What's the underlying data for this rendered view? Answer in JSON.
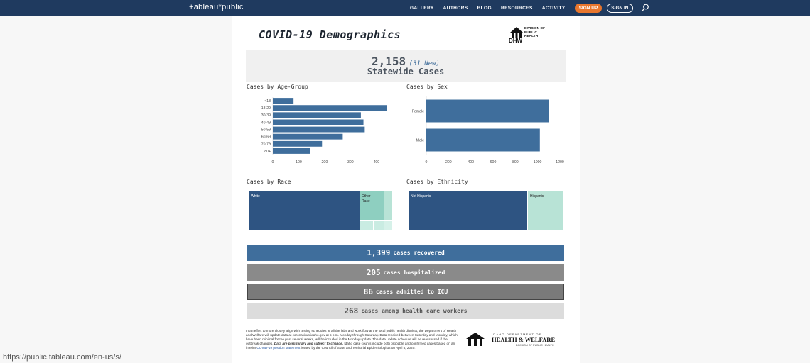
{
  "topbar": {
    "brand": "+ableau*public",
    "nav": [
      "GALLERY",
      "AUTHORS",
      "BLOG",
      "RESOURCES",
      "ACTIVITY"
    ],
    "signup": "SIGN UP",
    "signin": "SIGN IN",
    "bg": "#1f3a5f",
    "accent": "#e8762d"
  },
  "dashboard": {
    "title": "COVID-19 Demographics",
    "logo_text": [
      "DIVISION OF",
      "PUBLIC",
      "HEALTH"
    ],
    "logo_mark": "DHW",
    "banner": {
      "total": "2,158",
      "new": "(31 New)",
      "label": "Statewide Cases"
    },
    "sections": {
      "age": "Cases by Age-Group",
      "sex": "Cases by Sex",
      "race": "Cases by Race",
      "ethnicity": "Cases by Ethnicity"
    },
    "race_labels": {
      "white": "White",
      "other": "Other Race"
    },
    "ethnicity_labels": {
      "not_hispanic": "Not Hispanic",
      "hispanic": "Hispanic"
    },
    "stats": [
      {
        "number": "1,399",
        "text": "cases recovered",
        "color": "#3f6e9c"
      },
      {
        "number": "205",
        "text": "cases hospitalized",
        "color": "#8a8a8a"
      },
      {
        "number": "86",
        "text": "cases admitted to ICU",
        "color": "#7a7a7a"
      },
      {
        "number": "268",
        "text": "cases among health care workers",
        "color": "#dcdcdc",
        "textColor": "#555555"
      }
    ],
    "footer": {
      "p1": "In an effort to more closely align with testing schedules at all the labs and work flow at the local public health districts, the Department of Health and Welfare will update data at coronavirus.idaho.gov at 5 p.m. Monday through Saturday. Data received between Saturday and Monday, which have been minimal for the past several weeks, will be included in the Monday update. The data update schedule will be reassessed if the outbreak changes.",
      "bold": "Data are preliminary and subject to change.",
      "p2": "Idaho case counts include both probable and confirmed cases based on an interim",
      "link": "COVID-19 position statement",
      "p3": "issued by the Council of State and Territorial Epidemiologists on April 5, 2020.",
      "logo_top": "IDAHO DEPARTMENT OF",
      "logo_mid": "HEALTH & WELFARE",
      "logo_bot": "DIVISION OF PUBLIC HEALTH"
    }
  },
  "chart_data": [
    {
      "type": "bar",
      "title": "Cases by Age-Group",
      "orientation": "horizontal",
      "categories": [
        "<18",
        "18-29",
        "30-39",
        "40-49",
        "50-59",
        "60-69",
        "70-79",
        "80+"
      ],
      "values": [
        80,
        440,
        340,
        350,
        355,
        270,
        190,
        145
      ],
      "xlim": [
        0,
        450
      ],
      "ticks": [
        0,
        100,
        200,
        300,
        400
      ],
      "color": "#3f6e9c"
    },
    {
      "type": "bar",
      "title": "Cases by Sex",
      "orientation": "horizontal",
      "categories": [
        "Female",
        "Male"
      ],
      "values": [
        1100,
        1020
      ],
      "xlim": [
        0,
        1200
      ],
      "ticks": [
        0,
        200,
        400,
        600,
        800,
        1000,
        1200
      ],
      "color": "#3f6e9c"
    }
  ],
  "status_url": "https://public.tableau.com/en-us/s/"
}
